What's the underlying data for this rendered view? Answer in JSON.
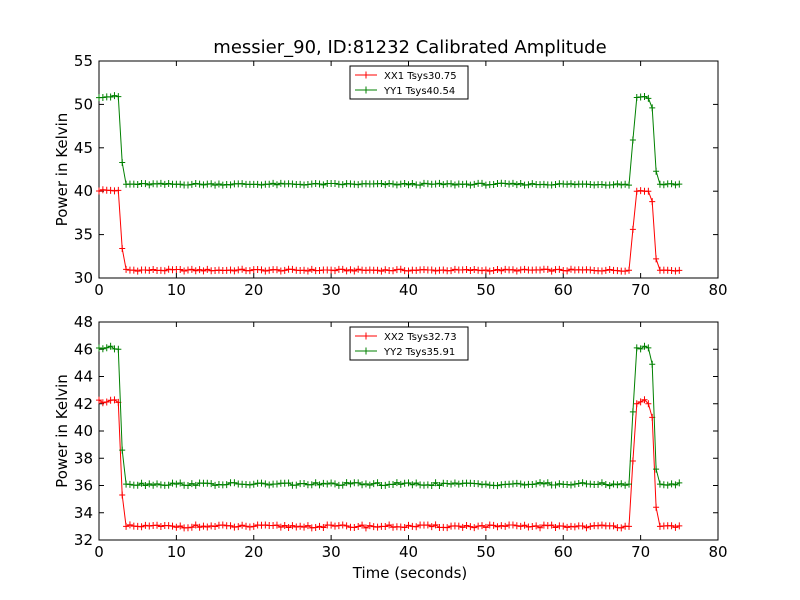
{
  "chart_data": [
    {
      "type": "line",
      "title": "messier_90, ID:81232 Calibrated Amplitude",
      "xlabel": "",
      "ylabel": "Power in Kelvin",
      "xlim": [
        0,
        80
      ],
      "ylim": [
        30,
        55
      ],
      "xticks": [
        "0",
        "10",
        "20",
        "30",
        "40",
        "50",
        "60",
        "70",
        "80"
      ],
      "yticks": [
        "30",
        "35",
        "40",
        "45",
        "50",
        "55"
      ],
      "legend_position": "top-center",
      "grid": false,
      "x": {
        "start": 0,
        "step": 0.5,
        "count": 151
      },
      "series": [
        {
          "name": "XX1 Tsys30.75",
          "color": "#ff0000",
          "marker": "+",
          "low": 30.9,
          "high": 40.1,
          "ramp_down": [
            [
              2.5,
              40.1
            ],
            [
              3.0,
              33.4
            ],
            [
              3.5,
              31.0
            ]
          ],
          "ramp_up": [
            [
              68.5,
              30.9
            ],
            [
              69.0,
              35.6
            ],
            [
              69.5,
              40.0
            ],
            [
              71.0,
              40.0
            ],
            [
              71.5,
              38.8
            ],
            [
              72.0,
              32.2
            ],
            [
              72.5,
              30.9
            ]
          ]
        },
        {
          "name": "YY1 Tsys40.54",
          "color": "#008000",
          "marker": "+",
          "low": 40.8,
          "high": 50.9,
          "ramp_down": [
            [
              2.5,
              50.9
            ],
            [
              3.0,
              43.3
            ],
            [
              3.5,
              40.8
            ]
          ],
          "ramp_up": [
            [
              68.5,
              40.7
            ],
            [
              69.0,
              45.9
            ],
            [
              69.5,
              50.8
            ],
            [
              71.0,
              50.7
            ],
            [
              71.5,
              49.6
            ],
            [
              72.0,
              42.3
            ],
            [
              72.5,
              40.8
            ]
          ]
        }
      ]
    },
    {
      "type": "line",
      "title": "",
      "xlabel": "Time (seconds)",
      "ylabel": "Power in Kelvin",
      "xlim": [
        0,
        80
      ],
      "ylim": [
        32,
        48
      ],
      "xticks": [
        "0",
        "10",
        "20",
        "30",
        "40",
        "50",
        "60",
        "70",
        "80"
      ],
      "yticks": [
        "32",
        "34",
        "36",
        "38",
        "40",
        "42",
        "44",
        "46",
        "48"
      ],
      "legend_position": "top-center",
      "grid": false,
      "x": {
        "start": 0,
        "step": 0.5,
        "count": 151
      },
      "series": [
        {
          "name": "XX2 Tsys32.73",
          "color": "#ff0000",
          "marker": "+",
          "low": 33.0,
          "high": 42.2,
          "ramp_down": [
            [
              2.5,
              42.1
            ],
            [
              3.0,
              35.3
            ],
            [
              3.5,
              33.0
            ]
          ],
          "ramp_up": [
            [
              68.5,
              33.0
            ],
            [
              69.0,
              37.8
            ],
            [
              69.5,
              42.0
            ],
            [
              71.0,
              42.0
            ],
            [
              71.5,
              41.0
            ],
            [
              72.0,
              34.4
            ],
            [
              72.5,
              33.0
            ]
          ]
        },
        {
          "name": "YY2 Tsys35.91",
          "color": "#008000",
          "marker": "+",
          "low": 36.1,
          "high": 46.1,
          "ramp_down": [
            [
              2.5,
              46.0
            ],
            [
              3.0,
              38.6
            ],
            [
              3.5,
              36.1
            ]
          ],
          "ramp_up": [
            [
              68.5,
              36.1
            ],
            [
              69.0,
              41.4
            ],
            [
              69.5,
              46.1
            ],
            [
              71.0,
              46.1
            ],
            [
              71.5,
              44.9
            ],
            [
              72.0,
              37.2
            ],
            [
              72.5,
              36.1
            ]
          ]
        }
      ]
    }
  ]
}
